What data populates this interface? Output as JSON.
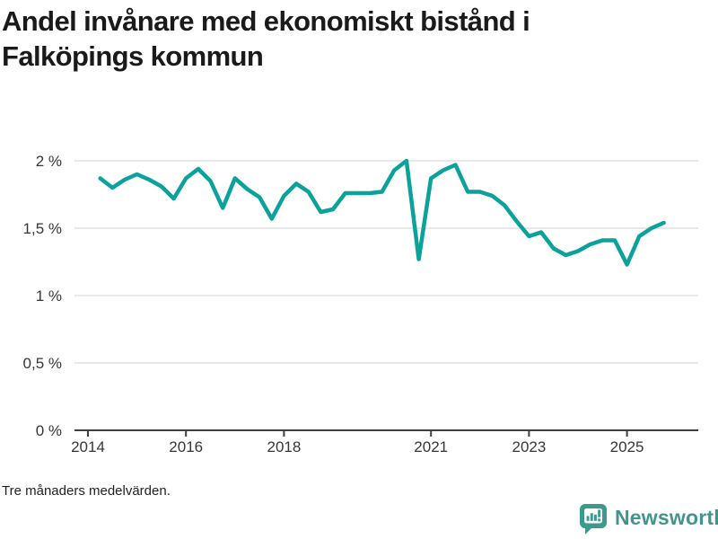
{
  "header": {
    "title_line1": "Andel invånare med ekonomiskt bistånd i",
    "title_line2": "Falköpings kommun"
  },
  "footer": {
    "note": "Tre månaders medelvärden."
  },
  "branding": {
    "name": "Newsworthy",
    "icon": "bar-chart-speech-bubble-icon",
    "icon_color": "#3a9a8d",
    "text_color": "#43948c"
  },
  "chart_data": {
    "type": "line",
    "title": "Andel invånare med ekonomiskt bistånd i Falköpings kommun",
    "note": "Tre månaders medelvärden.",
    "unit": "%",
    "grid": "horizontal",
    "legend_position": "none",
    "line_color": "#0aa29a",
    "grid_color": "#e1e1e1",
    "axis_color": "#3f3f3f",
    "label_color": "#363636",
    "ylim": [
      0,
      2.07
    ],
    "xlim": [
      2013.72,
      2026.45
    ],
    "x_ticks": [
      {
        "year": 2014,
        "label": "2014"
      },
      {
        "year": 2016,
        "label": "2016"
      },
      {
        "year": 2018,
        "label": "2018"
      },
      {
        "year": 2021,
        "label": "2021"
      },
      {
        "year": 2023,
        "label": "2023"
      },
      {
        "year": 2025,
        "label": "2025"
      }
    ],
    "y_ticks": [
      {
        "value": 0,
        "label": "0 %"
      },
      {
        "value": 0.5,
        "label": "0,5 %"
      },
      {
        "value": 1,
        "label": "1 %"
      },
      {
        "value": 1.5,
        "label": "1,5 %"
      },
      {
        "value": 2,
        "label": "2 %"
      }
    ],
    "x": [
      2014.25,
      2014.5,
      2014.75,
      2015.0,
      2015.25,
      2015.5,
      2015.75,
      2016.0,
      2016.25,
      2016.5,
      2016.75,
      2017.0,
      2017.25,
      2017.5,
      2017.75,
      2018.0,
      2018.25,
      2018.5,
      2018.75,
      2019.0,
      2019.25,
      2019.5,
      2019.75,
      2020.0,
      2020.25,
      2020.5,
      2020.75,
      2021.0,
      2021.25,
      2021.5,
      2021.75,
      2022.0,
      2022.25,
      2022.5,
      2022.75,
      2023.0,
      2023.25,
      2023.5,
      2023.75,
      2024.0,
      2024.25,
      2024.5,
      2024.75,
      2025.0,
      2025.25,
      2025.5,
      2025.75
    ],
    "y": [
      1.87,
      1.8,
      1.86,
      1.9,
      1.86,
      1.81,
      1.72,
      1.87,
      1.94,
      1.85,
      1.65,
      1.87,
      1.79,
      1.73,
      1.57,
      1.74,
      1.83,
      1.77,
      1.62,
      1.64,
      1.76,
      1.76,
      1.76,
      1.77,
      1.93,
      2.0,
      1.27,
      1.87,
      1.93,
      1.97,
      1.77,
      1.77,
      1.74,
      1.67,
      1.55,
      1.44,
      1.47,
      1.35,
      1.3,
      1.33,
      1.38,
      1.41,
      1.41,
      1.23,
      1.44,
      1.5,
      1.54
    ]
  }
}
